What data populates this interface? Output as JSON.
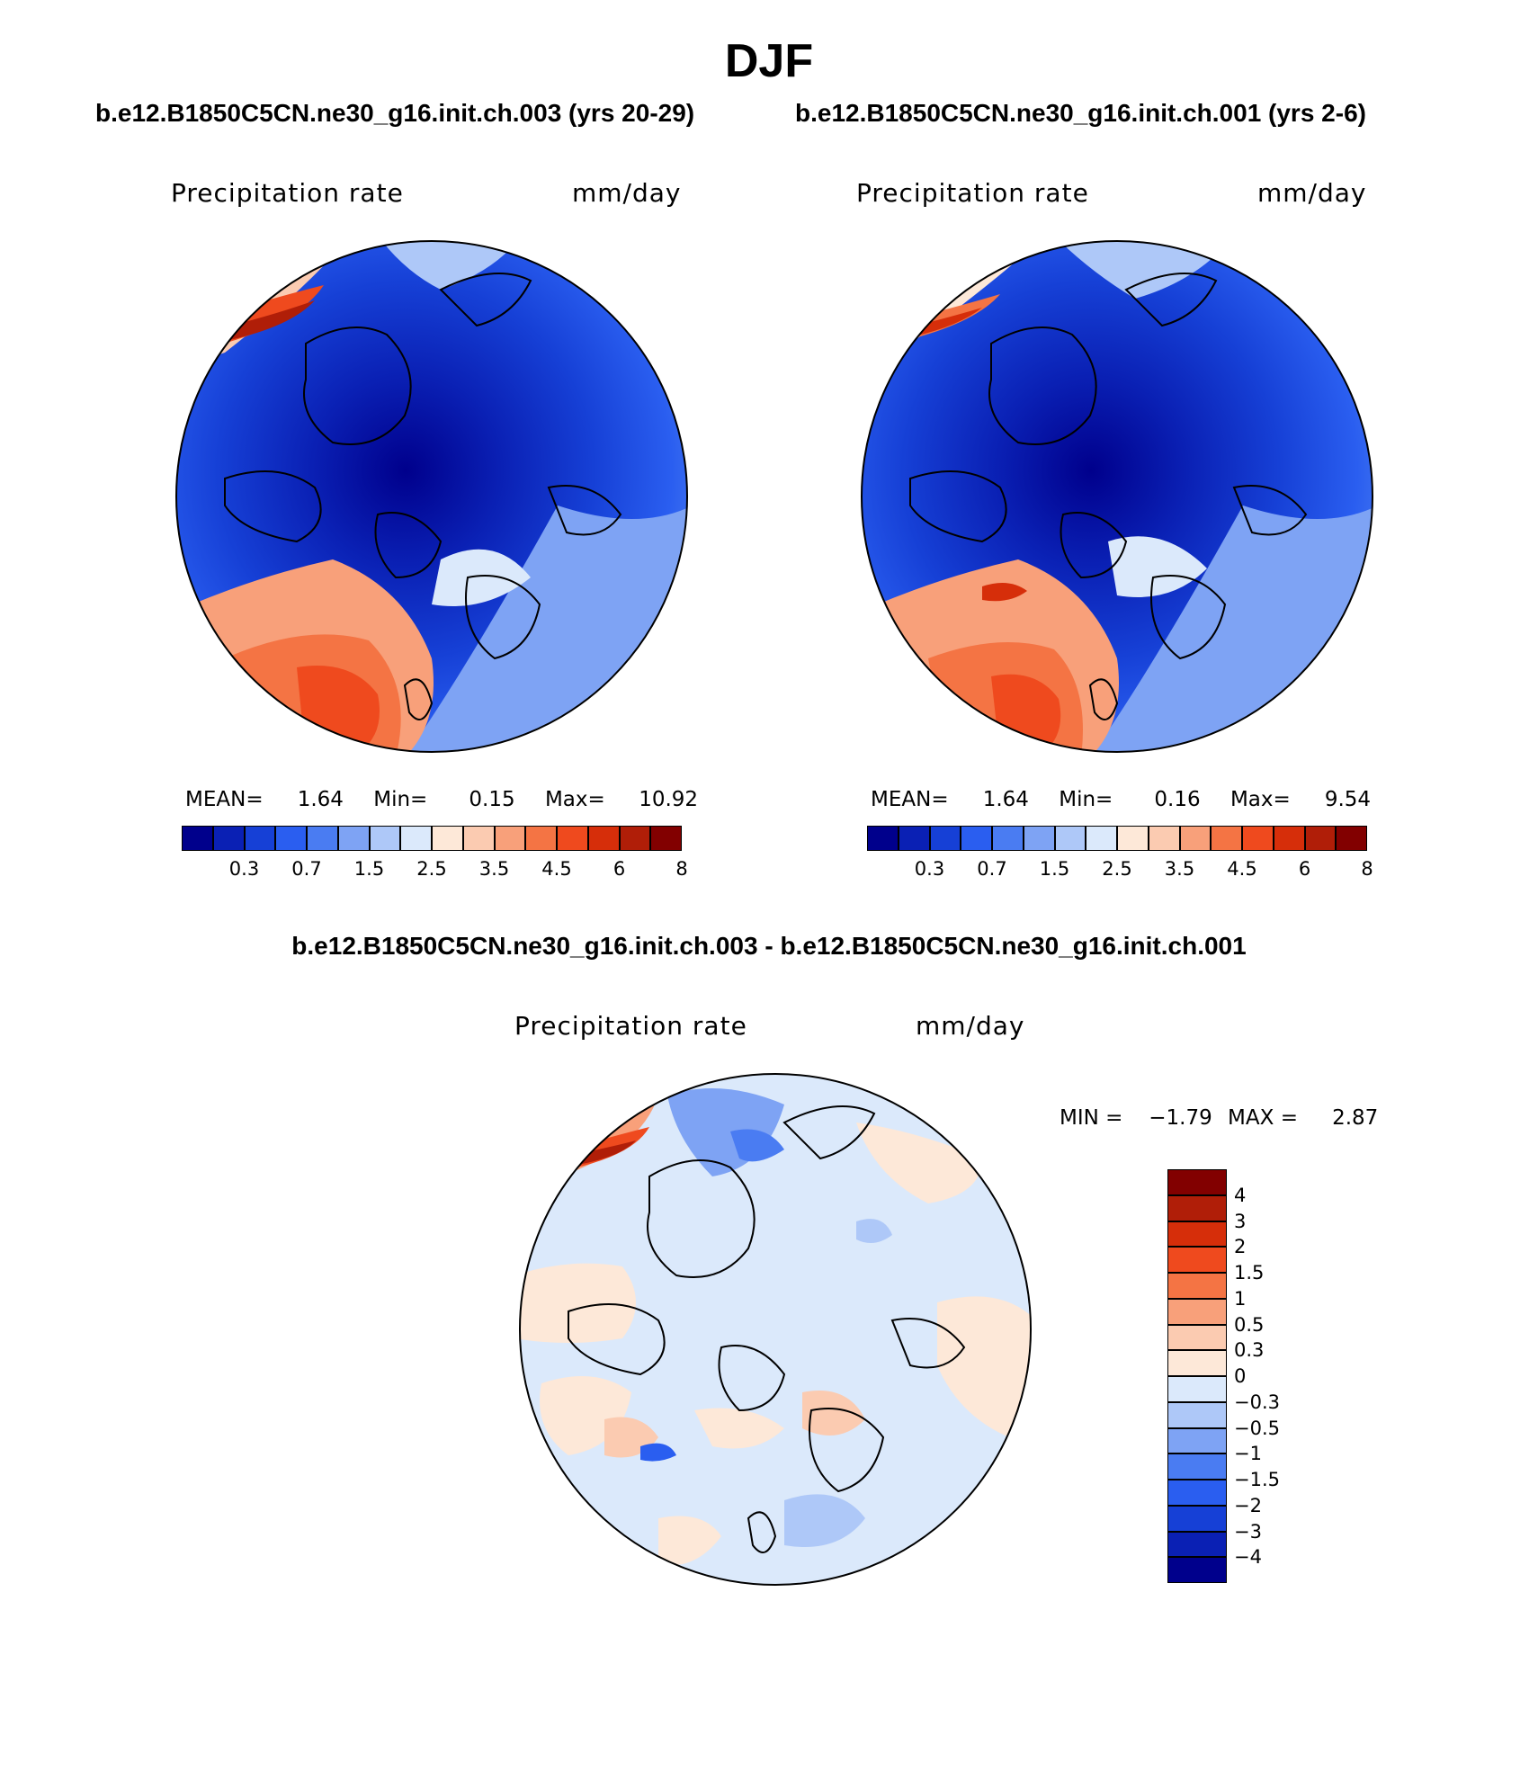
{
  "figure": {
    "title": "DJF",
    "diff_title": "b.e12.B1850C5CN.ne30_g16.init.ch.003 - b.e12.B1850C5CN.ne30_g16.init.ch.001"
  },
  "panels": [
    {
      "id": "case1",
      "case_title": "b.e12.B1850C5CN.ne30_g16.init.ch.003 (yrs 20-29)",
      "variable": "Precipitation rate",
      "units": "mm/day",
      "stats": {
        "mean_label": "MEAN=",
        "mean": "1.64",
        "min_label": "Min=",
        "min": "0.15",
        "max_label": "Max=",
        "max": "10.92"
      }
    },
    {
      "id": "case2",
      "case_title": "b.e12.B1850C5CN.ne30_g16.init.ch.001 (yrs 2-6)",
      "variable": "Precipitation rate",
      "units": "mm/day",
      "stats": {
        "mean_label": "MEAN=",
        "mean": "1.64",
        "min_label": "Min=",
        "min": "0.16",
        "max_label": "Max=",
        "max": "9.54"
      }
    },
    {
      "id": "diff",
      "variable": "Precipitation rate",
      "units": "mm/day",
      "stats": {
        "min_label": "MIN =",
        "min": "−1.79",
        "max_label": "MAX =",
        "max": "2.87"
      }
    }
  ],
  "colorbars": {
    "absolute": {
      "labels": [
        "0.3",
        "0.7",
        "1.5",
        "2.5",
        "3.5",
        "4.5",
        "6",
        "8"
      ],
      "colors": [
        "#00008c",
        "#0a20b4",
        "#1640d6",
        "#2a5ef0",
        "#4a7cf2",
        "#7ea3f4",
        "#aec8f8",
        "#dbe9fb",
        "#fde8d8",
        "#fbcbb1",
        "#f8a07a",
        "#f47444",
        "#ef4a1e",
        "#d62e0a",
        "#b01e08",
        "#820000"
      ]
    },
    "difference": {
      "labels": [
        "4",
        "3",
        "2",
        "1.5",
        "1",
        "0.5",
        "0.3",
        "0",
        "−0.3",
        "−0.5",
        "−1",
        "−1.5",
        "−2",
        "−3",
        "−4"
      ],
      "colors": [
        "#820000",
        "#b01e08",
        "#d62e0a",
        "#ef4a1e",
        "#f47444",
        "#f8a07a",
        "#fbcbb1",
        "#fde8d8",
        "#dbe9fb",
        "#aec8f8",
        "#7ea3f4",
        "#4a7cf2",
        "#2a5ef0",
        "#1640d6",
        "#0a20b4",
        "#00008c"
      ]
    }
  }
}
